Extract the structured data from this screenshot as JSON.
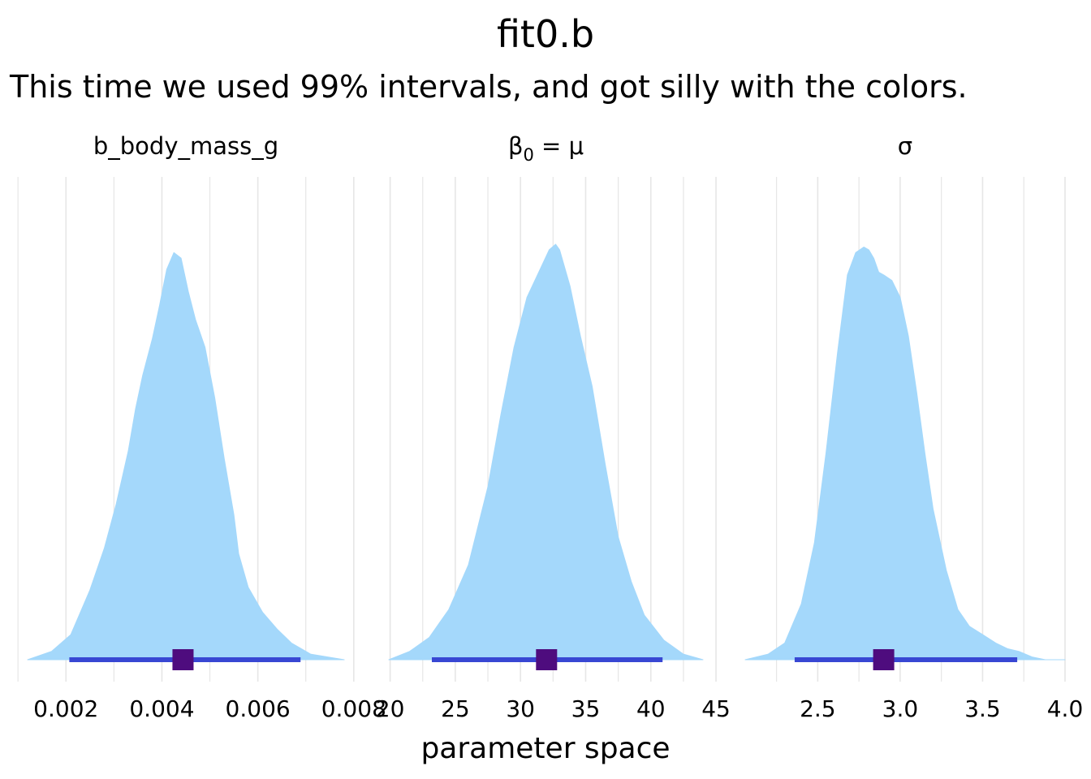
{
  "chart_data": {
    "type": "area",
    "title": "fit0.b",
    "subtitle": "This time we used 99% intervals, and got silly with the colors.",
    "xlabel": "parameter space",
    "ylabel": "",
    "grid": "vertical",
    "legend": "none",
    "interval_level": "99%",
    "colors": {
      "density_fill": "#a4d8fb",
      "interval": "#3847d3",
      "point": "#4e0c7e",
      "grid": "#e6e6e6"
    },
    "panels": [
      {
        "label": "b_body_mass_g",
        "label_parts": {
          "main": "b_body_mass_g",
          "sub": "",
          "tail": ""
        },
        "xlim": [
          0.0012,
          0.0078
        ],
        "x_ticks": [
          0.002,
          0.004,
          0.006,
          0.008
        ],
        "x_tick_labels": [
          "0.002",
          "0.004",
          "0.006",
          "0.008"
        ],
        "minor_ticks": [
          0.001,
          0.003,
          0.005,
          0.007
        ],
        "point_estimate": 0.00444,
        "interval": [
          0.00207,
          0.00689
        ],
        "density": {
          "x": [
            0.0012,
            0.0017,
            0.0021,
            0.0025,
            0.0028,
            0.00305,
            0.0033,
            0.00345,
            0.0036,
            0.0038,
            0.00395,
            0.0041,
            0.00425,
            0.0044,
            0.00455,
            0.0047,
            0.0049,
            0.0051,
            0.0053,
            0.0055,
            0.0056,
            0.0058,
            0.0061,
            0.0064,
            0.0067,
            0.0071,
            0.0078
          ],
          "y": [
            0.0,
            0.03,
            0.09,
            0.25,
            0.4,
            0.56,
            0.75,
            0.9,
            1.02,
            1.15,
            1.27,
            1.4,
            1.46,
            1.44,
            1.32,
            1.22,
            1.12,
            0.94,
            0.72,
            0.52,
            0.38,
            0.26,
            0.17,
            0.11,
            0.06,
            0.02,
            0.0
          ]
        }
      },
      {
        "label": "β0 = μ",
        "label_parts": {
          "main": "β",
          "sub": "0",
          "tail": " = μ"
        },
        "xlim": [
          19.9,
          44.0
        ],
        "x_ticks": [
          20,
          25,
          30,
          35,
          40,
          45
        ],
        "x_tick_labels": [
          "20",
          "25",
          "30",
          "35",
          "40",
          "45"
        ],
        "minor_ticks": [
          22.5,
          27.5,
          32.5,
          37.5,
          42.5
        ],
        "point_estimate": 32.0,
        "interval": [
          23.2,
          40.9
        ],
        "density": {
          "x": [
            19.9,
            21.5,
            23.0,
            24.5,
            26.0,
            27.5,
            28.5,
            29.5,
            30.5,
            31.5,
            32.2,
            32.7,
            33.0,
            33.8,
            34.6,
            35.5,
            36.5,
            37.5,
            38.5,
            39.5,
            41.0,
            42.5,
            44.0
          ],
          "y": [
            0.0,
            0.03,
            0.08,
            0.18,
            0.34,
            0.62,
            0.88,
            1.12,
            1.3,
            1.4,
            1.47,
            1.49,
            1.47,
            1.34,
            1.16,
            0.98,
            0.7,
            0.44,
            0.28,
            0.16,
            0.07,
            0.02,
            0.0
          ]
        }
      },
      {
        "label": "σ",
        "label_parts": {
          "main": "σ",
          "sub": "",
          "tail": ""
        },
        "xlim": [
          2.06,
          4.0
        ],
        "x_ticks": [
          2.5,
          3.0,
          3.5,
          4.0
        ],
        "x_tick_labels": [
          "2.5",
          "3.0",
          "3.5",
          "4.0"
        ],
        "minor_ticks": [
          2.25,
          2.75,
          3.25,
          3.75
        ],
        "point_estimate": 2.9,
        "interval": [
          2.36,
          3.71
        ],
        "density": {
          "x": [
            2.06,
            2.2,
            2.3,
            2.4,
            2.48,
            2.55,
            2.62,
            2.68,
            2.73,
            2.78,
            2.81,
            2.84,
            2.87,
            2.9,
            2.95,
            3.0,
            3.05,
            3.1,
            3.15,
            3.2,
            3.28,
            3.35,
            3.42,
            3.5,
            3.58,
            3.65,
            3.72,
            3.8,
            3.88,
            4.0
          ],
          "y": [
            0.0,
            0.02,
            0.06,
            0.2,
            0.42,
            0.74,
            1.1,
            1.38,
            1.46,
            1.48,
            1.47,
            1.44,
            1.39,
            1.38,
            1.36,
            1.3,
            1.16,
            0.96,
            0.74,
            0.54,
            0.32,
            0.18,
            0.12,
            0.09,
            0.06,
            0.04,
            0.03,
            0.01,
            0.0,
            0.0
          ]
        }
      }
    ]
  }
}
